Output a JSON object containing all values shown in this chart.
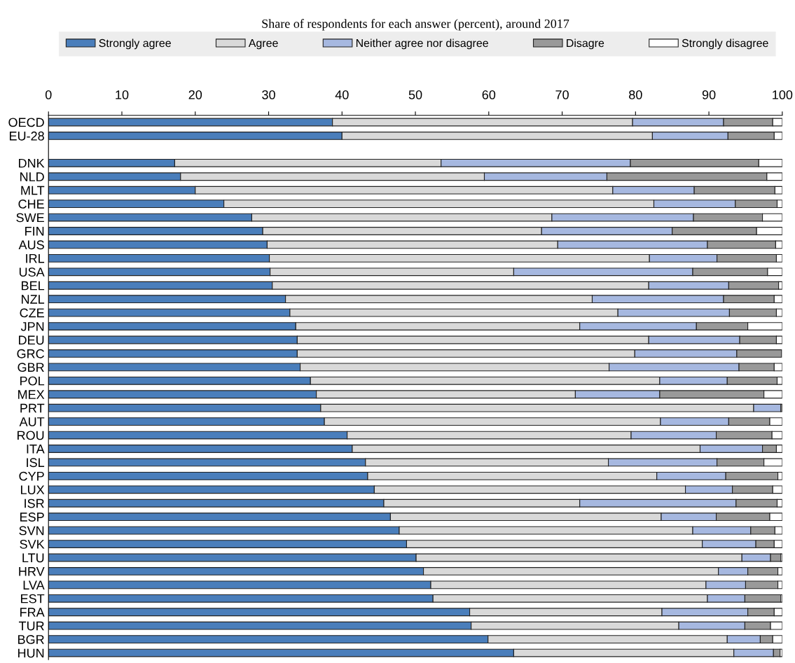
{
  "chart_data": {
    "type": "bar",
    "orientation": "horizontal",
    "stacked": true,
    "title": "Share of respondents for each answer (percent), around 2017",
    "categories": [
      "OECD",
      "EU-28",
      null,
      "DNK",
      "NLD",
      "MLT",
      "CHE",
      "SWE",
      "FIN",
      "AUS",
      "IRL",
      "USA",
      "BEL",
      "NZL",
      "CZE",
      "JPN",
      "DEU",
      "GRC",
      "GBR",
      "POL",
      "MEX",
      "PRT",
      "AUT",
      "ROU",
      "ITA",
      "ISL",
      "CYP",
      "LUX",
      "ISR",
      "ESP",
      "SVN",
      "SVK",
      "LTU",
      "HRV",
      "LVA",
      "EST",
      "FRA",
      "TUR",
      "BGR",
      "HUN"
    ],
    "series": [
      {
        "name": "Strongly agree",
        "color": "#4a7ebb",
        "values": [
          38.7,
          40.0,
          null,
          17.2,
          18.0,
          20.0,
          23.9,
          27.7,
          29.2,
          29.8,
          30.1,
          30.2,
          30.5,
          32.3,
          32.9,
          33.7,
          33.9,
          33.9,
          34.3,
          35.7,
          36.5,
          37.1,
          37.6,
          40.7,
          41.4,
          43.2,
          43.5,
          44.4,
          45.7,
          46.6,
          47.8,
          48.8,
          50.1,
          51.1,
          52.1,
          52.4,
          57.4,
          57.6,
          59.9,
          63.4
        ]
      },
      {
        "name": "Agree",
        "color": "#d9d9d9",
        "values": [
          40.9,
          42.3,
          null,
          36.3,
          41.4,
          56.9,
          58.6,
          40.9,
          38.0,
          39.6,
          51.8,
          33.2,
          51.3,
          41.8,
          44.7,
          38.7,
          47.9,
          46.0,
          42.1,
          47.6,
          35.3,
          59.0,
          45.8,
          38.7,
          47.4,
          33.1,
          39.4,
          42.4,
          26.7,
          36.9,
          40.0,
          40.3,
          44.4,
          40.2,
          37.5,
          37.4,
          26.2,
          28.3,
          32.6,
          30.0
        ]
      },
      {
        "name": "Neither agree nor disagree",
        "color": "#a6b8e0",
        "values": [
          12.4,
          10.3,
          null,
          25.8,
          16.7,
          11.1,
          11.1,
          19.3,
          17.8,
          20.4,
          9.2,
          24.4,
          10.9,
          17.9,
          15.2,
          15.9,
          12.4,
          13.9,
          17.7,
          9.2,
          11.5,
          3.7,
          9.3,
          11.6,
          8.5,
          14.8,
          9.4,
          6.4,
          21.3,
          7.5,
          7.9,
          7.3,
          3.9,
          4.0,
          5.4,
          5.1,
          11.7,
          9.0,
          4.5,
          5.4
        ]
      },
      {
        "name": "Disagre",
        "color": "#999999",
        "values": [
          6.7,
          6.3,
          null,
          17.5,
          21.8,
          11.0,
          5.7,
          9.4,
          11.5,
          9.3,
          8.1,
          10.2,
          6.8,
          6.9,
          6.4,
          7.0,
          5.0,
          6.1,
          4.8,
          6.8,
          14.2,
          0.2,
          5.6,
          7.6,
          1.9,
          6.4,
          7.1,
          5.5,
          5.6,
          7.3,
          3.3,
          2.5,
          1.4,
          4.1,
          4.4,
          4.9,
          3.6,
          3.5,
          1.7,
          0.9
        ]
      },
      {
        "name": "Strongly disagree",
        "color": "#ffffff",
        "values": [
          1.3,
          1.1,
          null,
          3.2,
          2.1,
          1.0,
          0.7,
          2.7,
          3.5,
          0.9,
          0.8,
          2.0,
          0.5,
          1.1,
          0.8,
          4.7,
          0.8,
          null,
          1.1,
          0.7,
          2.5,
          null,
          1.7,
          1.4,
          0.8,
          2.5,
          0.6,
          1.3,
          0.7,
          1.7,
          1.0,
          1.1,
          0.2,
          0.6,
          0.6,
          0.2,
          1.1,
          1.6,
          1.3,
          0.3
        ]
      }
    ],
    "xlim": [
      0,
      100
    ],
    "xticks": [
      0,
      10,
      20,
      30,
      40,
      50,
      60,
      70,
      80,
      90,
      100
    ],
    "grid": false,
    "legend": "top"
  }
}
